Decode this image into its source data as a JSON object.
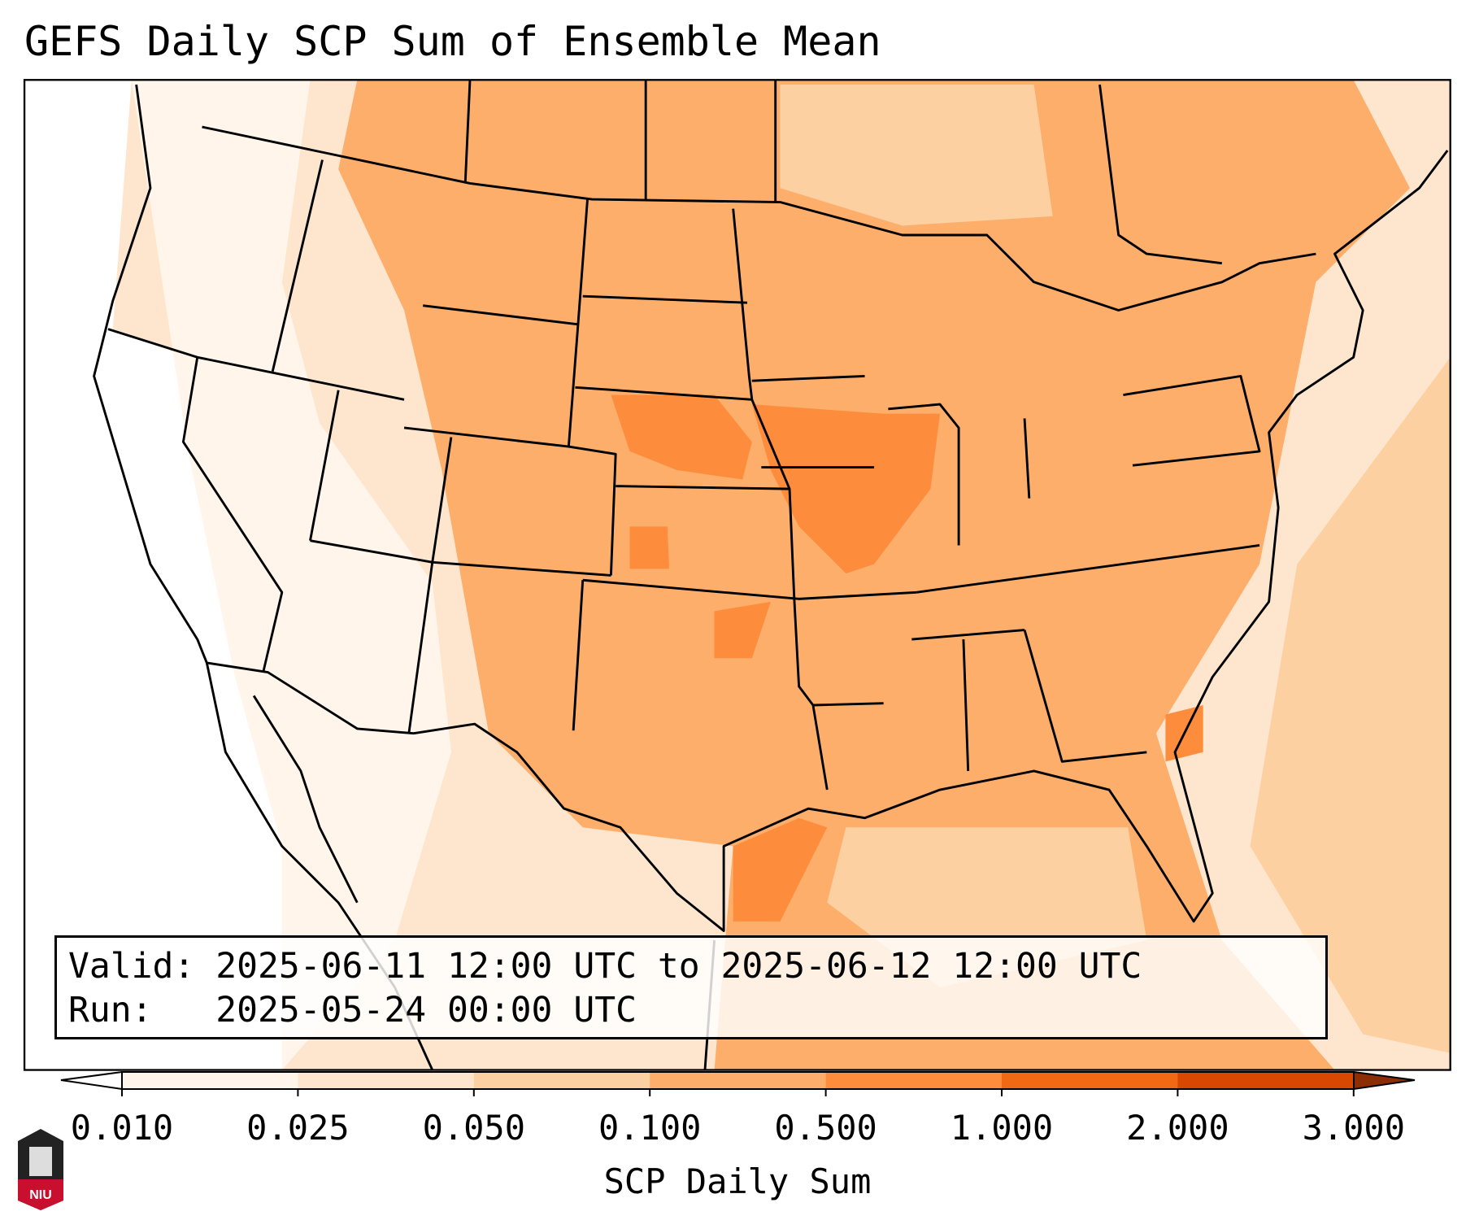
{
  "title": "GEFS Daily SCP Sum of Ensemble Mean",
  "info": {
    "valid_line": "Valid: 2025-06-11 12:00 UTC to 2025-06-12 12:00 UTC",
    "run_line": "Run:   2025-05-24 00:00 UTC"
  },
  "colorbar": {
    "label": "SCP Daily Sum",
    "ticks": [
      "0.010",
      "0.025",
      "0.050",
      "0.100",
      "0.500",
      "1.000",
      "2.000",
      "3.000"
    ],
    "colors": [
      "#fff5eb",
      "#fee6ce",
      "#fdd0a2",
      "#fdae6b",
      "#fd8d3c",
      "#f16913",
      "#d94801"
    ],
    "under_color": "#ffffff",
    "over_color": "#8c2d04"
  },
  "logo": {
    "text": "NIU"
  }
}
